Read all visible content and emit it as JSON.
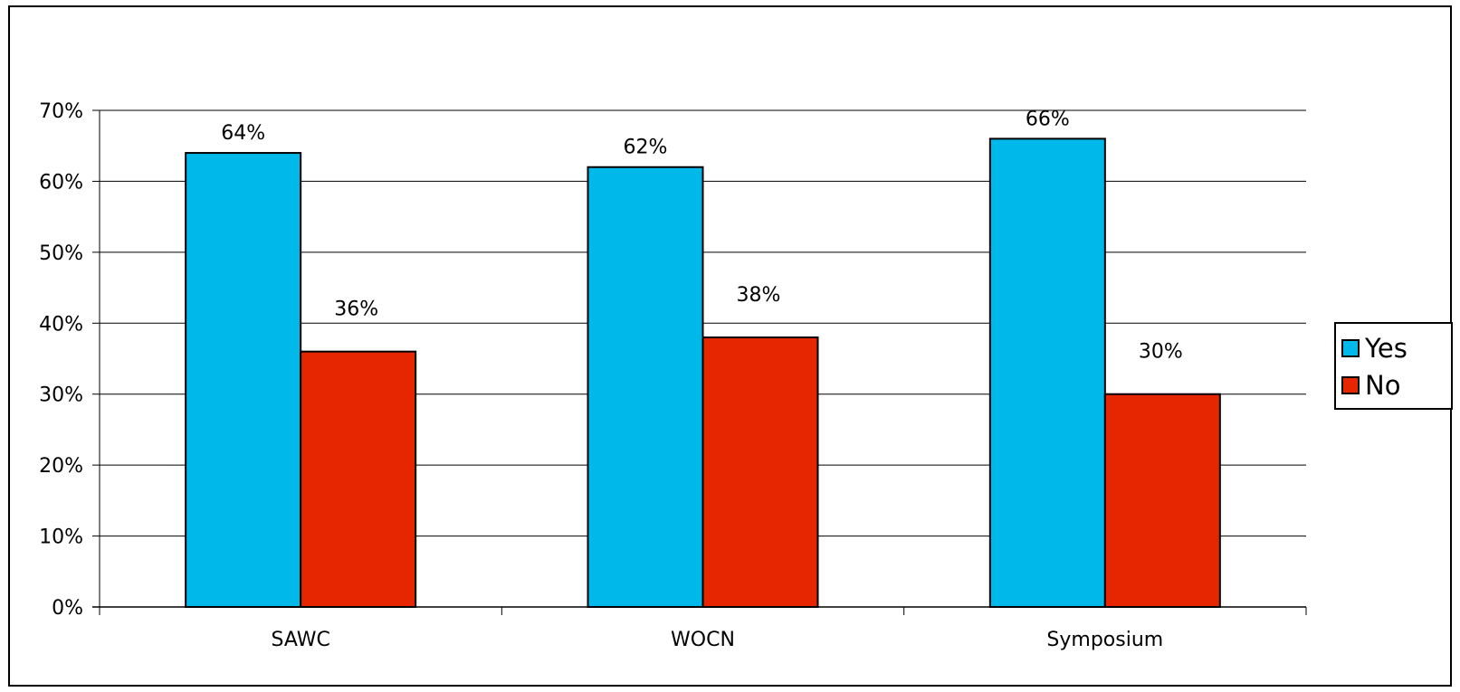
{
  "chart_data": {
    "type": "bar",
    "categories": [
      "SAWC",
      "WOCN",
      "Symposium"
    ],
    "series": [
      {
        "name": "Yes",
        "values": [
          64,
          62,
          66
        ],
        "labels": [
          "64%",
          "62%",
          "66%"
        ],
        "color": "#00B8EA"
      },
      {
        "name": "No",
        "values": [
          36,
          38,
          30
        ],
        "labels": [
          "36%",
          "38%",
          "30%"
        ],
        "color": "#E52600"
      }
    ],
    "ylim": [
      0,
      70
    ],
    "yticks": [
      0,
      10,
      20,
      30,
      40,
      50,
      60,
      70
    ],
    "ytick_labels": [
      "0%",
      "10%",
      "20%",
      "30%",
      "40%",
      "50%",
      "60%",
      "70%"
    ],
    "grid": true,
    "legend_position": "right",
    "title": "",
    "xlabel": "",
    "ylabel": ""
  }
}
